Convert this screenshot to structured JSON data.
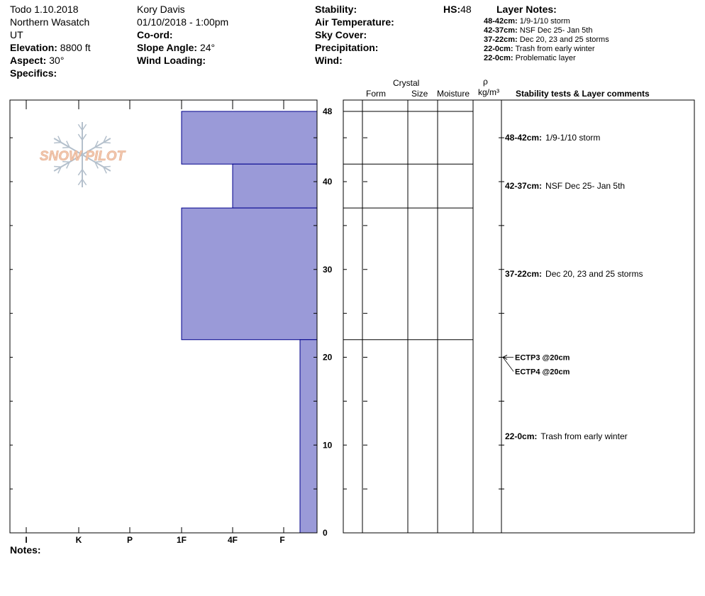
{
  "header": {
    "col1": {
      "title": "Todo 1.10.2018",
      "range": "Northern Wasatch",
      "state": "UT",
      "elevation_label": "Elevation:",
      "elevation_value": "8800 ft",
      "aspect_label": "Aspect:",
      "aspect_value": "30°",
      "specifics_label": "Specifics:"
    },
    "col2": {
      "observer": "Kory Davis",
      "datetime": "01/10/2018 - 1:00pm",
      "coord_label": "Co-ord:",
      "slope_label": "Slope Angle:",
      "slope_value": "24°",
      "wind_loading_label": "Wind Loading:"
    },
    "col3": {
      "stability_label": "Stability:",
      "air_temp_label": "Air Temperature:",
      "sky_cover_label": "Sky Cover:",
      "precip_label": "Precipitation:",
      "wind_label": "Wind:"
    },
    "hs_label": "HS:",
    "hs_value": "48",
    "layer_notes_title": "Layer Notes:",
    "layer_notes": [
      {
        "range": "48-42cm:",
        "text": "1/9-1/10 storm"
      },
      {
        "range": "42-37cm:",
        "text": "NSF Dec 25- Jan 5th"
      },
      {
        "range": "37-22cm:",
        "text": "Dec 20, 23 and 25 storms"
      },
      {
        "range": "22-0cm:",
        "text": "Trash from early winter"
      },
      {
        "range": "22-0cm:",
        "text": "Problematic layer"
      }
    ]
  },
  "columns": {
    "crystal": "Crystal",
    "form": "Form",
    "size": "Size",
    "moisture": "Moisture",
    "rho": "ρ",
    "density_unit": "kg/m³",
    "comments": "Stability tests & Layer comments"
  },
  "logo_text": "SNOW PILOT",
  "notes_label": "Notes:",
  "colors": {
    "hardness_fill": "#9a9ad8",
    "hardness_stroke": "#00008b",
    "logo": "#f2c7ad",
    "flake": "#b4c0cc"
  },
  "chart_data": {
    "type": "bar",
    "ylabel": "",
    "xlabel": "",
    "ylim": [
      0,
      48
    ],
    "y_ticks": [
      0,
      10,
      20,
      30,
      40,
      48
    ],
    "hardness_categories": [
      "I",
      "K",
      "P",
      "1F",
      "4F",
      "F"
    ],
    "layers": [
      {
        "top": 48,
        "bottom": 42,
        "hardness": "1F"
      },
      {
        "top": 42,
        "bottom": 37,
        "hardness": "4F"
      },
      {
        "top": 37,
        "bottom": 22,
        "hardness": "1F"
      },
      {
        "top": 22,
        "bottom": 0,
        "hardness": "F"
      }
    ],
    "layer_boundaries": [
      48,
      42,
      37,
      22
    ],
    "layer_comments": [
      {
        "depth": 45,
        "range": "48-42cm:",
        "text": "1/9-1/10 storm"
      },
      {
        "depth": 39.5,
        "range": "42-37cm:",
        "text": "NSF Dec 25- Jan 5th"
      },
      {
        "depth": 29.5,
        "range": "37-22cm:",
        "text": "Dec 20, 23 and 25 storms"
      },
      {
        "depth": 11,
        "range": "22-0cm:",
        "text": "Trash from early winter"
      }
    ],
    "stability_tests": [
      {
        "depth": 20,
        "label": "ECTP3 @20cm"
      },
      {
        "depth": 20,
        "label": "ECTP4 @20cm"
      }
    ]
  }
}
